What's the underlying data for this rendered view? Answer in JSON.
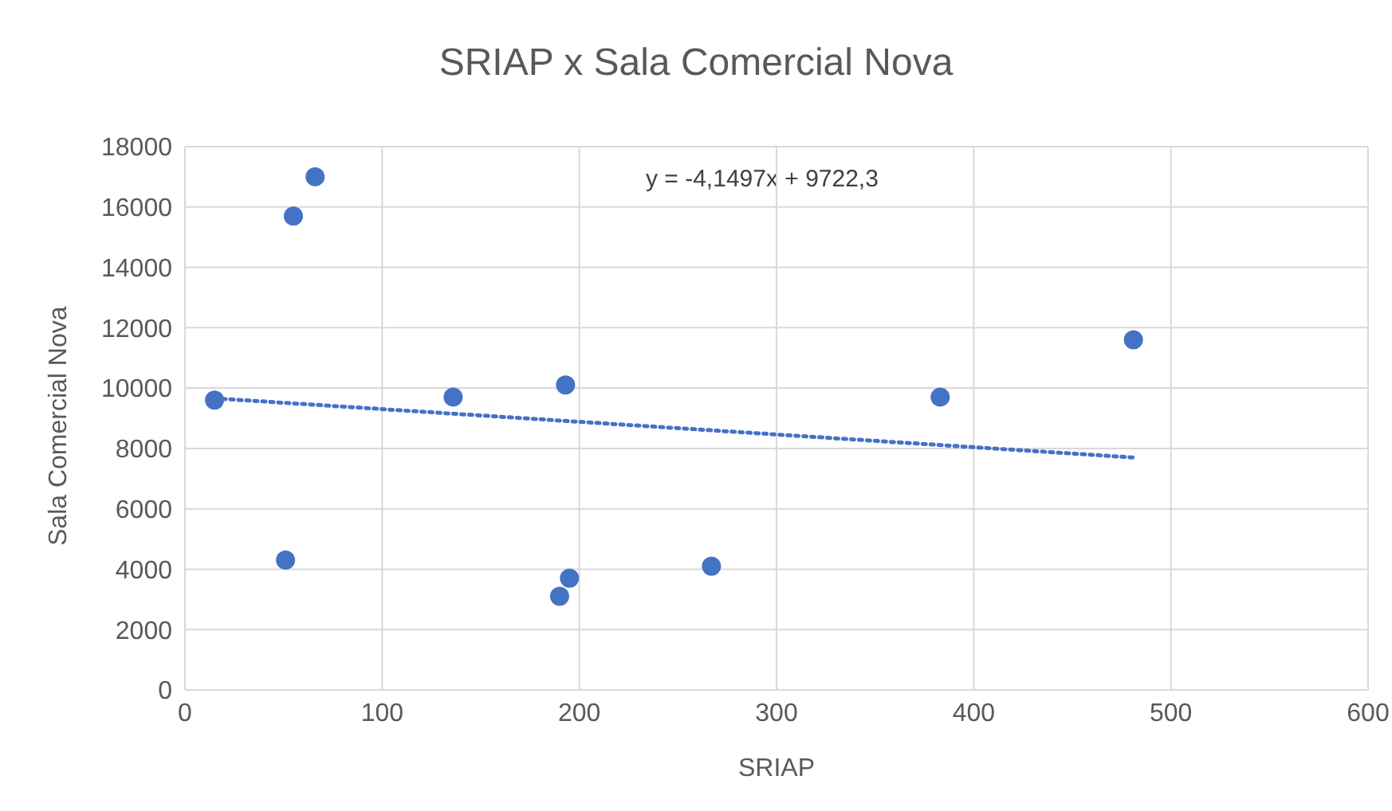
{
  "chart_data": {
    "type": "scatter",
    "title": "SRIAP x Sala Comercial Nova",
    "xlabel": "SRIAP",
    "ylabel": "Sala Comercial  Nova",
    "annotations": [
      "y = -4,1497x + 9722,3"
    ],
    "series": [
      {
        "color": "#4472c4",
        "x": [
          15,
          51,
          55,
          66,
          136,
          193,
          190,
          195,
          267,
          383,
          481
        ],
        "values": [
          9600,
          4300,
          15700,
          17000,
          9700,
          10100,
          3100,
          3700,
          4100,
          9700,
          11600
        ],
        "marker": "circle"
      },
      {
        "type": "line",
        "color": "#4472c4",
        "x": [
          15,
          481
        ],
        "values": [
          9660,
          7700
        ],
        "line_style": "dotted",
        "marker": "none"
      }
    ],
    "xlim": [
      0,
      600
    ],
    "xticks": [
      0,
      100,
      200,
      300,
      400,
      500,
      600
    ],
    "ylim": [
      0,
      18000
    ],
    "yticks": [
      0,
      2000,
      4000,
      6000,
      8000,
      10000,
      12000,
      14000,
      16000,
      18000
    ],
    "grid": true,
    "legend": false
  }
}
